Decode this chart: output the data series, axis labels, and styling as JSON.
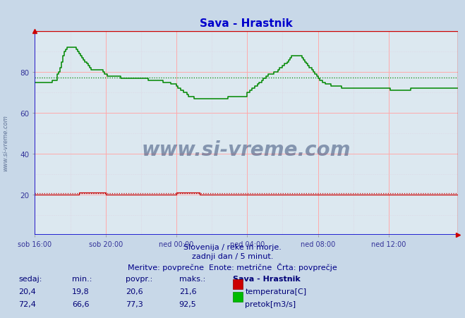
{
  "title": "Sava - Hrastnik",
  "title_color": "#0000cc",
  "bg_color": "#c8d8e8",
  "plot_bg_color": "#dce8f0",
  "grid_color_major": "#ffaaaa",
  "grid_color_minor": "#ddccdd",
  "ylim": [
    0,
    100
  ],
  "yticks": [
    20,
    40,
    60,
    80
  ],
  "xlabel_color": "#333399",
  "ylabel_color": "#333399",
  "xtick_labels": [
    "sob 16:00",
    "sob 20:00",
    "ned 00:00",
    "ned 04:00",
    "ned 08:00",
    "ned 12:00"
  ],
  "xtick_positions": [
    0,
    48,
    96,
    144,
    192,
    240
  ],
  "total_points": 288,
  "temp_avg": 20.6,
  "flow_avg": 77.3,
  "temp_color": "#cc0000",
  "flow_color": "#008800",
  "watermark_text": "www.si-vreme.com",
  "watermark_color": "#1a3060",
  "sidebar_text": "www.si-vreme.com",
  "footer_line1": "Slovenija / reke in morje.",
  "footer_line2": "zadnji dan / 5 minut.",
  "footer_line3": "Meritve: povprečne  Enote: metrične  Črta: povprečje",
  "footer_color": "#000088",
  "table_header": [
    "sedaj:",
    "min.:",
    "povpr.:",
    "maks.:",
    "Sava - Hrastnik"
  ],
  "table_color": "#000077",
  "temp_row": [
    "20,4",
    "19,8",
    "20,6",
    "21,6"
  ],
  "flow_row": [
    "72,4",
    "66,6",
    "77,3",
    "92,5"
  ],
  "temp_data": [
    20,
    20,
    20,
    20,
    20,
    20,
    20,
    20,
    20,
    20,
    20,
    20,
    20,
    20,
    20,
    20,
    20,
    20,
    20,
    20,
    20,
    20,
    20,
    20,
    20,
    20,
    20,
    20,
    20,
    20,
    21,
    21,
    21,
    21,
    21,
    21,
    21,
    21,
    21,
    21,
    21,
    21,
    21,
    21,
    21,
    21,
    21,
    21,
    20,
    20,
    20,
    20,
    20,
    20,
    20,
    20,
    20,
    20,
    20,
    20,
    20,
    20,
    20,
    20,
    20,
    20,
    20,
    20,
    20,
    20,
    20,
    20,
    20,
    20,
    20,
    20,
    20,
    20,
    20,
    20,
    20,
    20,
    20,
    20,
    20,
    20,
    20,
    20,
    20,
    20,
    20,
    20,
    20,
    20,
    20,
    20,
    21,
    21,
    21,
    21,
    21,
    21,
    21,
    21,
    21,
    21,
    21,
    21,
    21,
    21,
    21,
    21,
    20,
    20,
    20,
    20,
    20,
    20,
    20,
    20,
    20,
    20,
    20,
    20,
    20,
    20,
    20,
    20,
    20,
    20,
    20,
    20,
    20,
    20,
    20,
    20,
    20,
    20,
    20,
    20,
    20,
    20,
    20,
    20,
    20,
    20,
    20,
    20,
    20,
    20,
    20,
    20,
    20,
    20,
    20,
    20,
    20,
    20,
    20,
    20,
    20,
    20,
    20,
    20,
    20,
    20,
    20,
    20,
    20,
    20,
    20,
    20,
    20,
    20,
    20,
    20,
    20,
    20,
    20,
    20,
    20,
    20,
    20,
    20,
    20,
    20,
    20,
    20,
    20,
    20,
    20,
    20,
    20,
    20,
    20,
    20,
    20,
    20,
    20,
    20,
    20,
    20,
    20,
    20,
    20,
    20,
    20,
    20,
    20,
    20,
    20,
    20,
    20,
    20,
    20,
    20,
    20,
    20,
    20,
    20,
    20,
    20,
    20,
    20,
    20,
    20,
    20,
    20,
    20,
    20,
    20,
    20,
    20,
    20,
    20,
    20,
    20,
    20,
    20,
    20,
    20,
    20,
    20,
    20,
    20,
    20,
    20,
    20,
    20,
    20,
    20,
    20,
    20,
    20,
    20,
    20,
    20,
    20,
    20,
    20,
    20,
    20,
    20,
    20,
    20,
    20,
    20,
    20,
    20,
    20,
    20,
    20,
    20,
    20,
    20,
    20,
    20,
    20,
    20,
    20,
    20,
    20,
    20,
    20,
    20,
    20,
    20,
    20
  ],
  "flow_data": [
    75,
    75,
    75,
    75,
    75,
    75,
    75,
    75,
    75,
    75,
    75,
    75,
    76,
    76,
    76,
    79,
    80,
    82,
    85,
    88,
    90,
    91,
    92,
    92,
    92,
    92,
    92,
    92,
    91,
    90,
    89,
    88,
    87,
    86,
    85,
    84,
    83,
    82,
    81,
    81,
    81,
    81,
    81,
    81,
    81,
    81,
    80,
    79,
    79,
    78,
    78,
    78,
    78,
    78,
    78,
    78,
    78,
    78,
    77,
    77,
    77,
    77,
    77,
    77,
    77,
    77,
    77,
    77,
    77,
    77,
    77,
    77,
    77,
    77,
    77,
    77,
    77,
    76,
    76,
    76,
    76,
    76,
    76,
    76,
    76,
    76,
    76,
    75,
    75,
    75,
    75,
    75,
    74,
    74,
    74,
    74,
    73,
    72,
    72,
    71,
    71,
    70,
    70,
    69,
    68,
    68,
    68,
    68,
    67,
    67,
    67,
    67,
    67,
    67,
    67,
    67,
    67,
    67,
    67,
    67,
    67,
    67,
    67,
    67,
    67,
    67,
    67,
    67,
    67,
    67,
    67,
    68,
    68,
    68,
    68,
    68,
    68,
    68,
    68,
    68,
    68,
    68,
    68,
    68,
    70,
    70,
    71,
    72,
    72,
    73,
    73,
    74,
    75,
    75,
    76,
    77,
    77,
    78,
    79,
    79,
    79,
    79,
    80,
    80,
    80,
    81,
    82,
    82,
    83,
    84,
    84,
    85,
    86,
    87,
    88,
    88,
    88,
    88,
    88,
    88,
    88,
    87,
    86,
    85,
    84,
    83,
    82,
    82,
    81,
    80,
    79,
    78,
    77,
    76,
    76,
    75,
    75,
    74,
    74,
    74,
    74,
    73,
    73,
    73,
    73,
    73,
    73,
    73,
    72,
    72,
    72,
    72,
    72,
    72,
    72,
    72,
    72,
    72,
    72,
    72,
    72,
    72,
    72,
    72,
    72,
    72,
    72,
    72,
    72,
    72,
    72,
    72,
    72,
    72,
    72,
    72,
    72,
    72,
    72,
    72,
    72,
    71,
    71,
    71,
    71,
    71,
    71,
    71,
    71,
    71,
    71,
    71,
    71,
    71,
    71,
    72,
    72,
    72,
    72,
    72,
    72,
    72,
    72,
    72,
    72,
    72,
    72,
    72,
    72,
    72,
    72,
    72,
    72,
    72,
    72,
    72,
    72,
    72,
    72,
    72,
    72,
    72,
    72,
    72,
    72,
    72,
    72,
    72
  ]
}
